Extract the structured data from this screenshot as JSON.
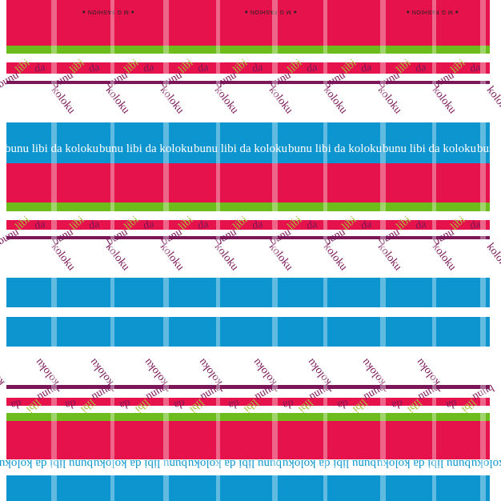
{
  "colors": {
    "red": "#e6124b",
    "blue": "#0d95cf",
    "green": "#6cbd1b",
    "purple": "#7b1759",
    "white": "#ffffff",
    "lime": "#a6c43a"
  },
  "brand": "● M G FASHION ●",
  "slogan_word": "bunu",
  "slogan_rest": "libi da koloku",
  "zig_words": [
    "bunu",
    "libi",
    "da",
    "koloku"
  ],
  "zig_lime_word": "libi"
}
